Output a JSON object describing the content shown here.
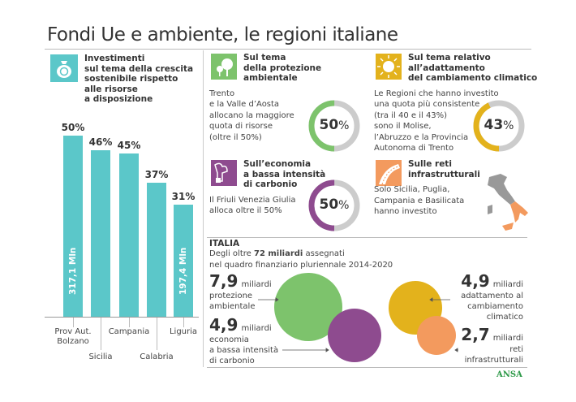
{
  "title": "Fondi Ue e ambiente, le regioni italiane",
  "left_panel": {
    "heading": [
      "Investimenti",
      "sul tema della crescita",
      "sostenibile rispetto",
      "alle risorse",
      "a disposizione"
    ],
    "icon": "money-bag-euro-icon",
    "color": "#5bc7c9"
  },
  "chart_data": {
    "type": "bar",
    "categories": [
      "Prov Aut. Bolzano",
      "Sicilia",
      "Campania",
      "Calabria",
      "Liguria"
    ],
    "values": [
      50,
      46,
      45,
      37,
      31
    ],
    "value_labels": [
      "50%",
      "46%",
      "45%",
      "37%",
      "31%"
    ],
    "bar_inner_labels": [
      "317,1 Mln",
      "",
      "",
      "",
      "197,4 Mln"
    ],
    "ylim": [
      0,
      50
    ],
    "unit": "%",
    "color": "#5bc7c9"
  },
  "panels": [
    {
      "heading": [
        "Sul tema",
        "della protezione",
        "ambientale"
      ],
      "icon": "tree-icon",
      "color": "#7dc36c",
      "text": [
        "Trento",
        "e la Valle d’Aosta",
        "allocano la maggiore",
        "quota di  risorse",
        "(oltre il 50%)"
      ],
      "donut_value": 50,
      "donut_label": "50",
      "donut_unit": "%"
    },
    {
      "heading": [
        "Sul tema relativo",
        "all’adattamento",
        "del cambiamento climatico"
      ],
      "icon": "sun-icon",
      "color": "#e3b21c",
      "text": [
        "Le Regioni che hanno investito",
        "una quota più consistente",
        "(tra il 40 e il 43%)",
        "sono il Molise,",
        "l’Abruzzo e la Provincia",
        "Autonoma di Trento"
      ],
      "donut_value": 43,
      "donut_label": "43",
      "donut_unit": "%"
    },
    {
      "heading": [
        "Sull’economia",
        "a bassa intensità",
        "di carbonio"
      ],
      "icon": "factory-smoke-icon",
      "color": "#8e4b8f",
      "text": [
        "Il Friuli Venezia Giulia",
        "alloca oltre il 50%"
      ],
      "donut_value": 50,
      "donut_label": "50",
      "donut_unit": "%"
    },
    {
      "heading": [
        "Sulle reti",
        "infrastrutturali"
      ],
      "icon": "road-icon",
      "color": "#f39a5e",
      "text": [
        "Solo Sicilia, Puglia,",
        "Campania e Basilicata",
        "hanno investito"
      ]
    }
  ],
  "italia": {
    "heading": "ITALIA",
    "sub_pre": "Degli oltre ",
    "sub_bold": "72 miliardi",
    "sub_post": " assegnati",
    "sub_line2": "nel quadro finanziario pluriennale 2014-2020",
    "unit": "miliardi",
    "items": [
      {
        "value": "7,9",
        "label": [
          "protezione",
          "ambientale"
        ],
        "color": "#7dc36c",
        "amount": 7.9
      },
      {
        "value": "4,9",
        "label": [
          "economia",
          "a bassa intensità",
          "di carbonio"
        ],
        "color": "#8e4b8f",
        "amount": 4.9
      },
      {
        "value": "4,9",
        "label": [
          "adattamento al",
          "cambiamento",
          "climatico"
        ],
        "color": "#e3b21c",
        "amount": 4.9
      },
      {
        "value": "2,7",
        "label": [
          "reti",
          "infrastrutturali"
        ],
        "color": "#f39a5e",
        "amount": 2.7
      }
    ]
  },
  "map_icon": "italy-map-icon",
  "logo": "ANSA"
}
